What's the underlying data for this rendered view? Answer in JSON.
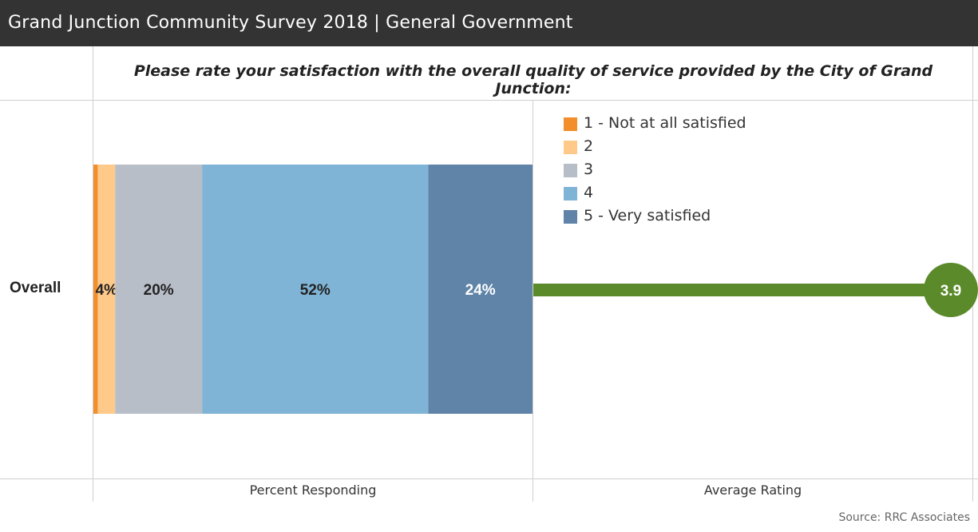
{
  "header": {
    "title": "Grand Junction Community Survey 2018 | General Government"
  },
  "question": "Please rate your satisfaction with the overall quality of service provided by the City of Grand Junction:",
  "row_label": "Overall",
  "footer": {
    "left_axis_title": "Percent Responding",
    "right_axis_title": "Average Rating",
    "source": "Source: RRC Associates"
  },
  "chart_data": [
    {
      "type": "bar",
      "orientation": "horizontal-stacked",
      "categories": [
        "Overall"
      ],
      "series": [
        {
          "name": "1 - Not at all satisfied",
          "values": [
            1
          ],
          "color": "#f28e2b",
          "label": ""
        },
        {
          "name": "2",
          "values": [
            4
          ],
          "color": "#ffc98a",
          "label": "4%"
        },
        {
          "name": "3",
          "values": [
            20
          ],
          "color": "#b8bec8",
          "label": "20%"
        },
        {
          "name": "4",
          "values": [
            52
          ],
          "color": "#80b4d6",
          "label": "52%"
        },
        {
          "name": "5 - Very satisfied",
          "values": [
            24
          ],
          "color": "#5f84a8",
          "label": "24%"
        }
      ],
      "xlabel": "Percent Responding",
      "legend_position": "top-right",
      "grid": false
    },
    {
      "type": "lollipop",
      "categories": [
        "Overall"
      ],
      "values": [
        3.9
      ],
      "value_label": "3.9",
      "xlabel": "Average Rating",
      "xlim": [
        1,
        4.05
      ],
      "color": "#5b8a2b"
    }
  ]
}
